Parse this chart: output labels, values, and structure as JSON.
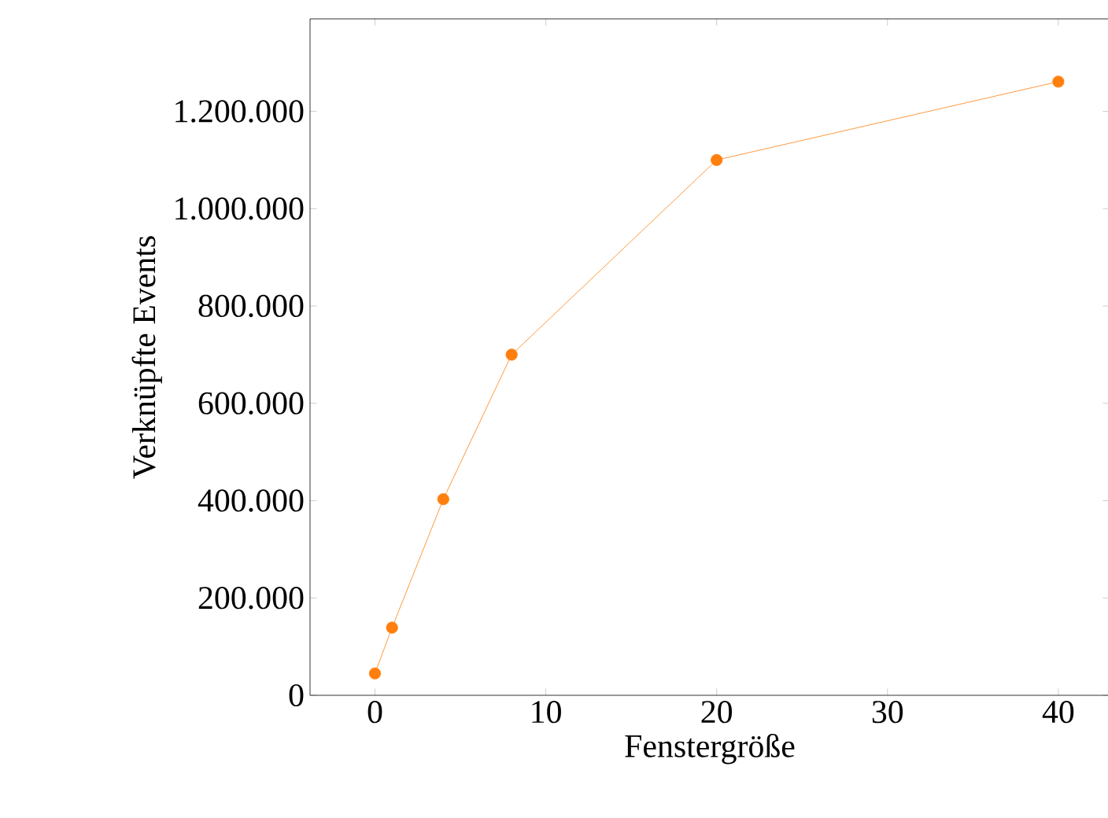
{
  "chart_data": {
    "type": "line",
    "xlabel": "Fenstergröße",
    "ylabel": "Verknüpfte Events",
    "x": [
      0,
      1,
      4,
      8,
      20,
      40
    ],
    "series": [
      {
        "color": "#ff7f0e",
        "values": [
          45000,
          139000,
          403000,
          700000,
          1100000,
          1261000
        ]
      }
    ],
    "xlim": [
      -3.8,
      43
    ],
    "ylim": [
      0,
      1390000
    ],
    "xticks": [
      0,
      10,
      20,
      30,
      40
    ],
    "yticks": [
      {
        "value": 0,
        "label": "0"
      },
      {
        "value": 200000,
        "label": "200.000"
      },
      {
        "value": 400000,
        "label": "400.000"
      },
      {
        "value": 600000,
        "label": "600.000"
      },
      {
        "value": 800000,
        "label": "800.000"
      },
      {
        "value": 1000000,
        "label": "1.000.000"
      },
      {
        "value": 1200000,
        "label": "1.200.000"
      }
    ],
    "marker": "circle",
    "line_style": "solid",
    "grid": false
  }
}
